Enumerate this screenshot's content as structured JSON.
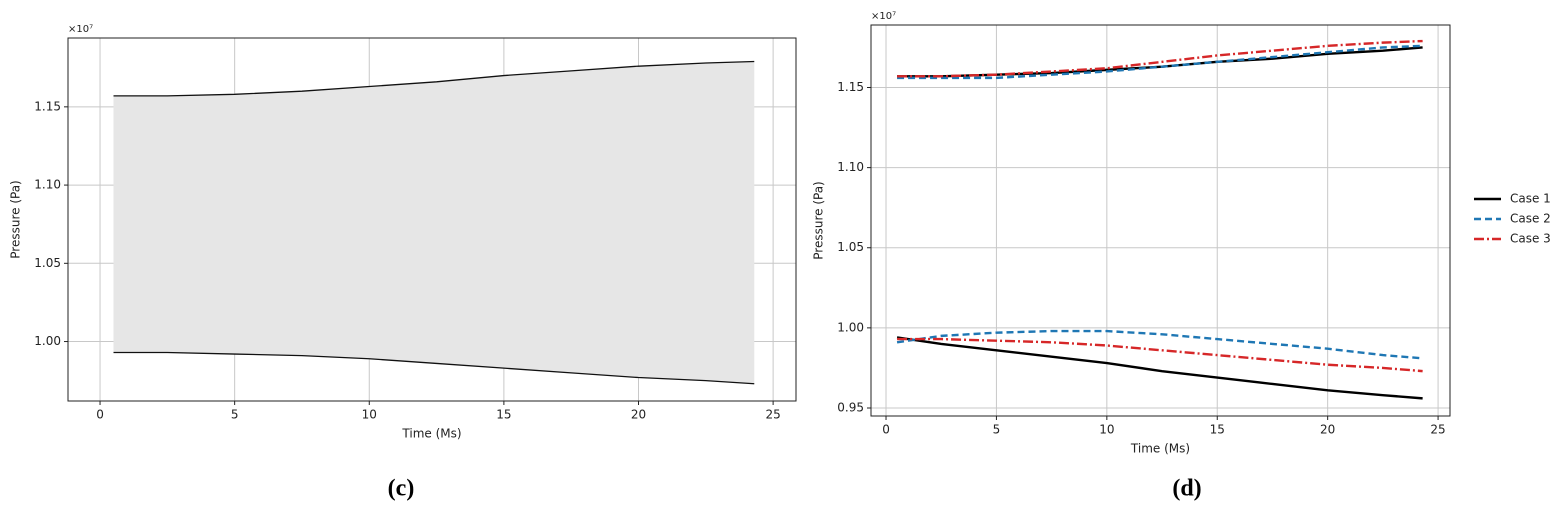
{
  "chart_data": [
    {
      "type": "band",
      "x_label": "Time (Ms)",
      "y_label": "Pressure (Pa)",
      "y_scale_label": "×10⁷",
      "caption": "(c)",
      "x": [
        0.5,
        2.5,
        5,
        7.5,
        10,
        12.5,
        15,
        17.5,
        20,
        22.5,
        24.3
      ],
      "series": [
        {
          "color": "#111111",
          "values": [
            1.157,
            1.157,
            1.158,
            1.16,
            1.163,
            1.166,
            1.17,
            1.173,
            1.176,
            1.178,
            1.179
          ]
        },
        {
          "color": "#111111",
          "values": [
            0.993,
            0.993,
            0.992,
            0.991,
            0.989,
            0.986,
            0.983,
            0.98,
            0.977,
            0.975,
            0.973
          ]
        }
      ],
      "fill_between": true,
      "fill_color": "#e6e6e6",
      "xlim": [
        -1.19,
        25.85
      ],
      "xticks": [
        0,
        5,
        10,
        15,
        20,
        25
      ],
      "ylim": [
        0.962,
        1.194
      ],
      "yticks": [
        {
          "value": 1,
          "label": "1.00"
        },
        1.05,
        {
          "value": 1.1,
          "label": "1.10"
        },
        1.15
      ],
      "grid": true
    },
    {
      "type": "envelope",
      "x_label": "Time (Ms)",
      "y_label": "Pressure (Pa)",
      "y_scale_label": "×10⁷",
      "caption": "(d)",
      "x": [
        0.5,
        2.5,
        5,
        7.5,
        10,
        12.5,
        15,
        17.5,
        20,
        22.5,
        24.3
      ],
      "series": [
        {
          "name": "Case 1",
          "color": "#000000",
          "dash": "solid",
          "upper": [
            1.157,
            1.157,
            1.158,
            1.159,
            1.161,
            1.163,
            1.166,
            1.168,
            1.171,
            1.173,
            1.175
          ],
          "lower": [
            0.994,
            0.99,
            0.986,
            0.982,
            0.978,
            0.973,
            0.969,
            0.965,
            0.961,
            0.958,
            0.956
          ]
        },
        {
          "name": "Case 2",
          "color": "#1f77b4",
          "dash": "dashed",
          "upper": [
            1.156,
            1.156,
            1.156,
            1.158,
            1.16,
            1.163,
            1.166,
            1.169,
            1.172,
            1.175,
            1.176
          ],
          "lower": [
            0.991,
            0.995,
            0.997,
            0.998,
            0.998,
            0.996,
            0.993,
            0.99,
            0.987,
            0.983,
            0.981
          ]
        },
        {
          "name": "Case 3",
          "color": "#d62728",
          "dash": "dashdot",
          "upper": [
            1.157,
            1.157,
            1.158,
            1.16,
            1.162,
            1.166,
            1.17,
            1.173,
            1.176,
            1.178,
            1.179
          ],
          "lower": [
            0.993,
            0.993,
            0.992,
            0.991,
            0.989,
            0.986,
            0.983,
            0.98,
            0.977,
            0.975,
            0.973
          ]
        }
      ],
      "xlim": [
        -0.68,
        25.54
      ],
      "xticks": [
        0,
        5,
        10,
        15,
        20,
        25
      ],
      "ylim": [
        0.945,
        1.189
      ],
      "yticks": [
        0.95,
        {
          "value": 1,
          "label": "1.00"
        },
        1.05,
        {
          "value": 1.1,
          "label": "1.10"
        },
        1.15
      ],
      "grid": true,
      "legend": "right"
    }
  ]
}
